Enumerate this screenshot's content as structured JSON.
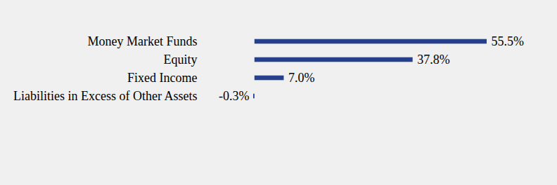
{
  "chart_data": {
    "type": "bar",
    "orientation": "horizontal",
    "categories": [
      "Money Market Funds",
      "Equity",
      "Fixed Income",
      "Liabilities in Excess of Other Assets"
    ],
    "values": [
      55.5,
      37.8,
      7.0,
      -0.3
    ],
    "value_labels": [
      "55.5%",
      "37.8%",
      "7.0%",
      "-0.3%"
    ],
    "color": "#27408b",
    "xlim": [
      -0.3,
      55.5
    ],
    "xticks": [],
    "grid": false,
    "data_labels": true,
    "tick_labels": "y"
  }
}
